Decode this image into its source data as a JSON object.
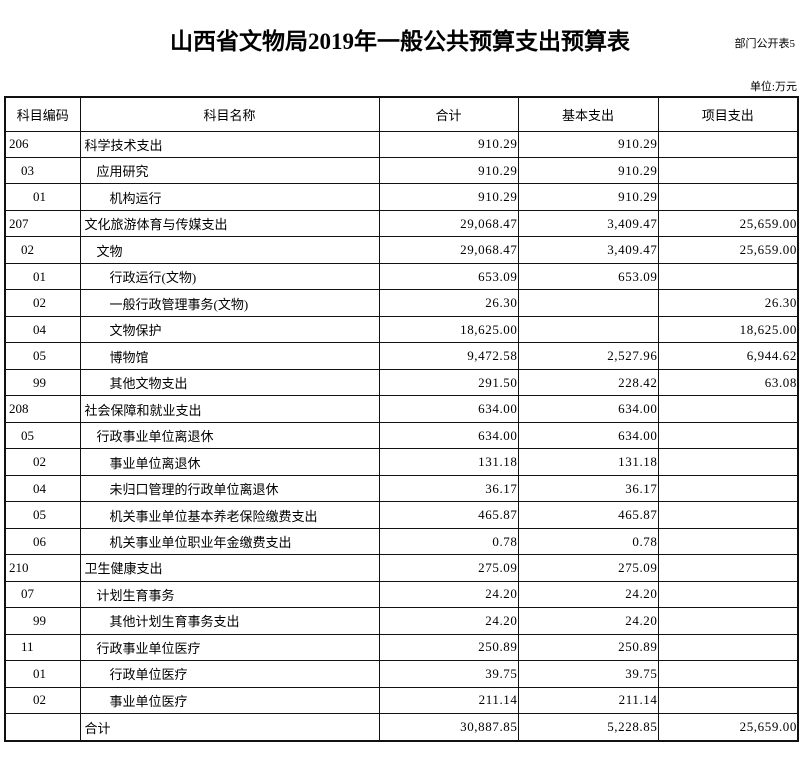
{
  "meta": {
    "doc_label": "部门公开表5",
    "title": "山西省文物局2019年一般公共预算支出预算表",
    "unit_note": "单位:万元"
  },
  "table": {
    "columns": [
      "科目编码",
      "科目名称",
      "合计",
      "基本支出",
      "项目支出"
    ],
    "rows": [
      {
        "code": "206",
        "name": "科学技术支出",
        "level": 0,
        "total": "910.29",
        "basic": "910.29",
        "project": ""
      },
      {
        "code": "03",
        "name": "应用研究",
        "level": 1,
        "total": "910.29",
        "basic": "910.29",
        "project": ""
      },
      {
        "code": "01",
        "name": "机构运行",
        "level": 2,
        "total": "910.29",
        "basic": "910.29",
        "project": ""
      },
      {
        "code": "207",
        "name": "文化旅游体育与传媒支出",
        "level": 0,
        "total": "29,068.47",
        "basic": "3,409.47",
        "project": "25,659.00"
      },
      {
        "code": "02",
        "name": "文物",
        "level": 1,
        "total": "29,068.47",
        "basic": "3,409.47",
        "project": "25,659.00"
      },
      {
        "code": "01",
        "name": "行政运行(文物)",
        "level": 2,
        "total": "653.09",
        "basic": "653.09",
        "project": ""
      },
      {
        "code": "02",
        "name": "一般行政管理事务(文物)",
        "level": 2,
        "total": "26.30",
        "basic": "",
        "project": "26.30"
      },
      {
        "code": "04",
        "name": "文物保护",
        "level": 2,
        "total": "18,625.00",
        "basic": "",
        "project": "18,625.00"
      },
      {
        "code": "05",
        "name": "博物馆",
        "level": 2,
        "total": "9,472.58",
        "basic": "2,527.96",
        "project": "6,944.62"
      },
      {
        "code": "99",
        "name": "其他文物支出",
        "level": 2,
        "total": "291.50",
        "basic": "228.42",
        "project": "63.08"
      },
      {
        "code": "208",
        "name": "社会保障和就业支出",
        "level": 0,
        "total": "634.00",
        "basic": "634.00",
        "project": ""
      },
      {
        "code": "05",
        "name": "行政事业单位离退休",
        "level": 1,
        "total": "634.00",
        "basic": "634.00",
        "project": ""
      },
      {
        "code": "02",
        "name": "事业单位离退休",
        "level": 2,
        "total": "131.18",
        "basic": "131.18",
        "project": ""
      },
      {
        "code": "04",
        "name": "未归口管理的行政单位离退休",
        "level": 2,
        "total": "36.17",
        "basic": "36.17",
        "project": ""
      },
      {
        "code": "05",
        "name": "机关事业单位基本养老保险缴费支出",
        "level": 2,
        "total": "465.87",
        "basic": "465.87",
        "project": ""
      },
      {
        "code": "06",
        "name": "机关事业单位职业年金缴费支出",
        "level": 2,
        "total": "0.78",
        "basic": "0.78",
        "project": ""
      },
      {
        "code": "210",
        "name": "卫生健康支出",
        "level": 0,
        "total": "275.09",
        "basic": "275.09",
        "project": ""
      },
      {
        "code": "07",
        "name": "计划生育事务",
        "level": 1,
        "total": "24.20",
        "basic": "24.20",
        "project": ""
      },
      {
        "code": "99",
        "name": "其他计划生育事务支出",
        "level": 2,
        "total": "24.20",
        "basic": "24.20",
        "project": ""
      },
      {
        "code": "11",
        "name": "行政事业单位医疗",
        "level": 1,
        "total": "250.89",
        "basic": "250.89",
        "project": ""
      },
      {
        "code": "01",
        "name": "行政单位医疗",
        "level": 2,
        "total": "39.75",
        "basic": "39.75",
        "project": ""
      },
      {
        "code": "02",
        "name": "事业单位医疗",
        "level": 2,
        "total": "211.14",
        "basic": "211.14",
        "project": ""
      },
      {
        "code": "",
        "name": "合计",
        "level": 0,
        "total": "30,887.85",
        "basic": "5,228.85",
        "project": "25,659.00",
        "is_total": true
      }
    ]
  }
}
